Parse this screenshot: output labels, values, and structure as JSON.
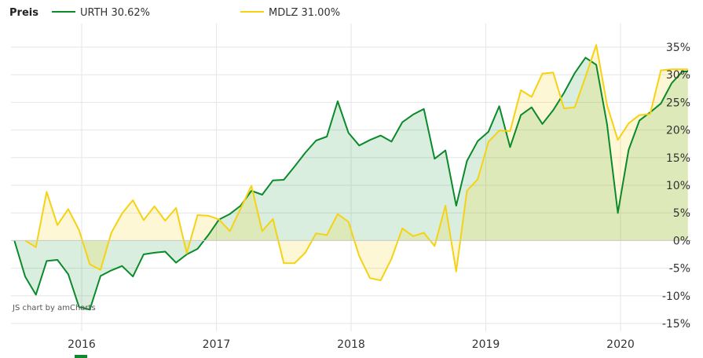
{
  "legend": {
    "title": "Preis",
    "items": [
      {
        "label": "URTH 30.62%",
        "color": "#0a8a2a"
      },
      {
        "label": "MDLZ 31.00%",
        "color": "#f5d214"
      }
    ]
  },
  "credit": "JS chart by amCharts",
  "chart_data": {
    "type": "line",
    "title": "",
    "xlabel": "",
    "ylabel": "",
    "x_range": [
      2015.46,
      2020.5
    ],
    "ylim": [
      -15.5,
      38
    ],
    "y_ticks": [
      -15,
      -10,
      -5,
      0,
      5,
      10,
      15,
      20,
      25,
      30,
      35
    ],
    "y_tick_labels": [
      "-15%",
      "-10%",
      "-5%",
      "0%",
      "5%",
      "10%",
      "15%",
      "20%",
      "25%",
      "30%",
      "35%"
    ],
    "x_ticks": [
      2016,
      2017,
      2018,
      2019,
      2020
    ],
    "x_tick_labels": [
      "2016",
      "2017",
      "2018",
      "2019",
      "2020"
    ],
    "baseline": 0,
    "grid": true,
    "legend_position": "top-left",
    "series": [
      {
        "name": "URTH 30.62%",
        "color": "#0a8a2a",
        "fill": "#0a8a2a",
        "x": [
          2015.5,
          2015.58,
          2015.66,
          2015.74,
          2015.82,
          2015.9,
          2015.98,
          2016.06,
          2016.14,
          2016.22,
          2016.3,
          2016.38,
          2016.46,
          2016.54,
          2016.62,
          2016.7,
          2016.78,
          2016.86,
          2016.94,
          2017.02,
          2017.1,
          2017.18,
          2017.26,
          2017.34,
          2017.42,
          2017.5,
          2017.58,
          2017.66,
          2017.74,
          2017.82,
          2017.9,
          2017.98,
          2018.06,
          2018.14,
          2018.22,
          2018.3,
          2018.38,
          2018.46,
          2018.54,
          2018.62,
          2018.7,
          2018.78,
          2018.86,
          2018.94,
          2019.02,
          2019.1,
          2019.18,
          2019.26,
          2019.34,
          2019.42,
          2019.5,
          2019.58,
          2019.66,
          2019.74,
          2019.82,
          2019.9,
          2019.98,
          2020.06,
          2020.14,
          2020.22,
          2020.3,
          2020.38,
          2020.46,
          2020.5
        ],
        "values": [
          0,
          -6.5,
          -9.8,
          -3.7,
          -3.5,
          -6.1,
          -12.0,
          -12.5,
          -6.4,
          -5.4,
          -4.6,
          -6.5,
          -2.5,
          -2.2,
          -2.0,
          -4.0,
          -2.5,
          -1.5,
          1.0,
          3.8,
          4.8,
          6.3,
          9.0,
          8.3,
          10.9,
          11.0,
          13.4,
          15.9,
          18.1,
          18.8,
          25.2,
          19.5,
          17.2,
          18.2,
          19.0,
          17.9,
          21.4,
          22.8,
          23.8,
          14.8,
          16.3,
          6.3,
          14.4,
          18.0,
          19.7,
          24.3,
          16.9,
          22.7,
          24.1,
          21.1,
          23.6,
          26.7,
          30.3,
          33.1,
          31.8,
          21.0,
          5.0,
          16.4,
          21.7,
          23.2,
          24.8,
          28.5,
          30.6,
          30.6
        ]
      },
      {
        "name": "MDLZ 31.00%",
        "color": "#f5d214",
        "fill": "#f5d214",
        "x": [
          2015.58,
          2015.66,
          2015.74,
          2015.82,
          2015.9,
          2015.98,
          2016.06,
          2016.14,
          2016.22,
          2016.3,
          2016.38,
          2016.46,
          2016.54,
          2016.62,
          2016.7,
          2016.78,
          2016.86,
          2016.94,
          2017.02,
          2017.1,
          2017.18,
          2017.26,
          2017.34,
          2017.42,
          2017.5,
          2017.58,
          2017.66,
          2017.74,
          2017.82,
          2017.9,
          2017.98,
          2018.06,
          2018.14,
          2018.22,
          2018.3,
          2018.38,
          2018.46,
          2018.54,
          2018.62,
          2018.7,
          2018.78,
          2018.86,
          2018.94,
          2019.02,
          2019.1,
          2019.18,
          2019.26,
          2019.34,
          2019.42,
          2019.5,
          2019.58,
          2019.66,
          2019.74,
          2019.82,
          2019.9,
          2019.98,
          2020.06,
          2020.14,
          2020.22,
          2020.3,
          2020.38,
          2020.46,
          2020.5
        ],
        "values": [
          0,
          -1.2,
          8.8,
          2.8,
          5.7,
          1.9,
          -4.3,
          -5.3,
          1.4,
          4.9,
          7.3,
          3.7,
          6.2,
          3.6,
          5.9,
          -2.3,
          4.6,
          4.5,
          3.8,
          1.7,
          5.8,
          9.9,
          1.7,
          3.9,
          -4.1,
          -4.1,
          -2.2,
          1.3,
          1.0,
          4.8,
          3.4,
          -2.8,
          -6.8,
          -7.2,
          -3.3,
          2.2,
          0.8,
          1.4,
          -1.0,
          6.3,
          -5.6,
          9.0,
          11.1,
          17.9,
          19.9,
          19.8,
          27.2,
          26.0,
          30.2,
          30.4,
          23.9,
          24.1,
          29.6,
          35.4,
          24.5,
          18.2,
          21.2,
          22.7,
          22.9,
          30.8,
          31.0,
          31.0,
          31.0
        ]
      }
    ]
  }
}
